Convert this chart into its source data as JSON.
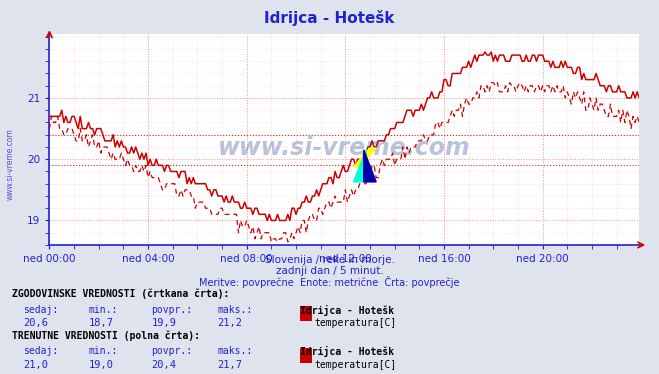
{
  "title": "Idrijca - Hotešk",
  "subtitle1": "Slovenija / reke in morje.",
  "subtitle2": "zadnji dan / 5 minut.",
  "subtitle3": "Meritve: povprečne  Enote: metrične  Črta: povprečje",
  "xlabel_ticks": [
    "ned 00:00",
    "ned 04:00",
    "ned 08:00",
    "ned 12:00",
    "ned 16:00",
    "ned 20:00"
  ],
  "ylabel_ticks": [
    19,
    20,
    21
  ],
  "ylim": [
    18.6,
    22.05
  ],
  "xlim": [
    0,
    287
  ],
  "bg_color": "#dfe3ee",
  "plot_bg_color": "#ffffff",
  "grid_color_major": "#ff8888",
  "grid_color_minor": "#ffcccc",
  "axis_color": "#2222cc",
  "line_color": "#cc0000",
  "watermark_color": "#1a3a8a",
  "hist_values_label": "ZGODOVINSKE VREDNOSTI (črtkana črta):",
  "curr_values_label": "TRENUTNE VREDNOSTI (polna črta):",
  "col_headers": [
    "sedaj:",
    "min.:",
    "povpr.:",
    "maks.:"
  ],
  "hist_row": [
    "20,6",
    "18,7",
    "19,9",
    "21,2"
  ],
  "curr_row": [
    "21,0",
    "19,0",
    "20,4",
    "21,7"
  ],
  "station_label": "Idrijca - Hotešk",
  "series_label": "temperatura[C]",
  "hist_avg": 19.9,
  "curr_avg": 20.4,
  "hist_min": 18.7,
  "curr_min": 19.0,
  "hist_max": 21.2,
  "curr_max": 21.7,
  "hist_curr": 20.6,
  "curr_curr": 21.0
}
